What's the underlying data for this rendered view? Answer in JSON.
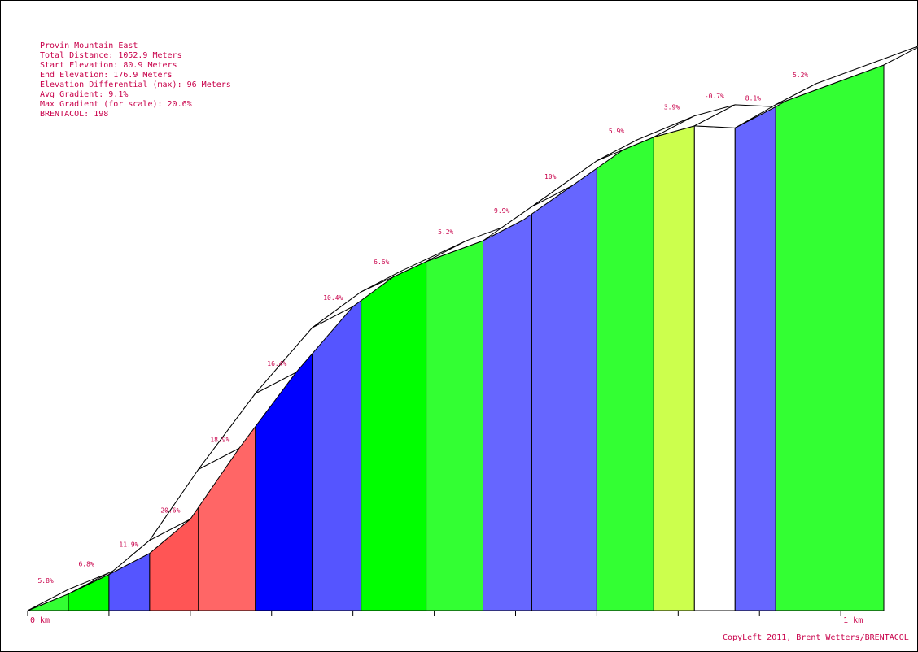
{
  "info": {
    "name": "Provin Mountain East",
    "total_distance": "Total Distance: 1052.9 Meters",
    "start_elevation": "Start Elevation: 80.9 Meters",
    "end_elevation": "End Elevation: 176.9 Meters",
    "elevation_diff": "Elevation Differential (max): 96 Meters",
    "avg_gradient": "Avg Gradient: 9.1%",
    "max_gradient": "Max Gradient (for scale): 20.6%",
    "brentacol": "BRENTACOL: 198"
  },
  "credit": "CopyLeft 2011, Brent Wetters/BRENTACOL",
  "chart_data": {
    "type": "area",
    "title": "Provin Mountain East",
    "xlabel": "",
    "ylabel": "",
    "xlim": [
      0,
      1052.9
    ],
    "ylim": [
      80.9,
      176.9
    ],
    "x_tick_labels": [
      {
        "x": 0,
        "label": "0 km"
      },
      {
        "x": 1000,
        "label": "1 km"
      }
    ],
    "x_tick_step": 100,
    "segments": [
      {
        "start": 0,
        "end": 50,
        "gradient": 5.8,
        "label": "5.8%",
        "color": "#33ff33"
      },
      {
        "start": 50,
        "end": 100,
        "gradient": 6.8,
        "label": "6.8%",
        "color": "#00ff00"
      },
      {
        "start": 100,
        "end": 150,
        "gradient": 11.9,
        "label": "11.9%",
        "color": "#5555ff"
      },
      {
        "start": 150,
        "end": 210,
        "gradient": 20.6,
        "label": "20.6%",
        "color": "#ff5555"
      },
      {
        "start": 210,
        "end": 280,
        "gradient": 18.9,
        "label": "18.9%",
        "color": "#ff6666"
      },
      {
        "start": 280,
        "end": 350,
        "gradient": 16.4,
        "label": "16.4%",
        "color": "#0000ff"
      },
      {
        "start": 350,
        "end": 410,
        "gradient": 10.4,
        "label": "10.4%",
        "color": "#5555ff"
      },
      {
        "start": 410,
        "end": 490,
        "gradient": 6.6,
        "label": "6.6%",
        "color": "#00ff00"
      },
      {
        "start": 490,
        "end": 560,
        "gradient": 5.2,
        "label": "5.2%",
        "color": "#33ff33"
      },
      {
        "start": 560,
        "end": 620,
        "gradient": 9.9,
        "label": "9.9%",
        "color": "#6666ff"
      },
      {
        "start": 620,
        "end": 700,
        "gradient": 10,
        "label": "10%",
        "color": "#6666ff"
      },
      {
        "start": 700,
        "end": 770,
        "gradient": 5.9,
        "label": "5.9%",
        "color": "#33ff33"
      },
      {
        "start": 770,
        "end": 820,
        "gradient": 3.9,
        "label": "3.9%",
        "color": "#ccff4d"
      },
      {
        "start": 820,
        "end": 870,
        "gradient": -0.7,
        "label": "-0.7%",
        "color": "#ffffff"
      },
      {
        "start": 870,
        "end": 920,
        "gradient": 8.1,
        "label": "8.1%",
        "color": "#6666ff"
      },
      {
        "start": 920,
        "end": 1052.9,
        "gradient": 5.2,
        "label": "5.2%",
        "color": "#33ff33"
      }
    ]
  }
}
